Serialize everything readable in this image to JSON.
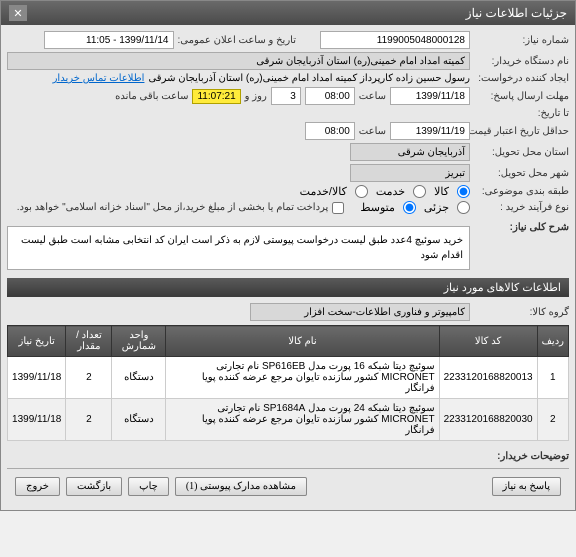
{
  "window": {
    "title": "جزئیات اطلاعات نیاز"
  },
  "header": {
    "need_no_label": "شماره نیاز:",
    "need_no": "1199005048000128",
    "announce_label": "تاریخ و ساعت اعلان عمومی:",
    "announce_val": "1399/11/14 - 11:05",
    "buyer_label": "نام دستگاه خریدار:",
    "buyer_val": "کمیته امداد امام خمینی(ره) استان آذربایجان شرقی",
    "creator_label": "ایجاد کننده درخواست:",
    "creator_val": "رسول  حسین زاده  کارپرداز کمیته امداد امام خمینی(ره) استان آذربایجان شرقی",
    "contact_link": "اطلاعات تماس خریدار",
    "deadline_label": "مهلت ارسال پاسخ:",
    "deadline_date": "1399/11/18",
    "time_label": "ساعت",
    "deadline_time": "08:00",
    "day_count": "3",
    "day_label": "روز و",
    "timer": "11:07:21",
    "remain_label": "ساعت باقی مانده",
    "until_label": "تا تاریخ:",
    "credit_label": "حداقل تاریخ اعتبار قیمت:",
    "credit_date": "1399/11/19",
    "credit_time": "08:00",
    "delivery_label": "استان محل تحویل:",
    "delivery_val": "آذربایجان شرقی",
    "city_label": "شهر محل تحویل:",
    "city_val": "تبریز",
    "group_label": "طبقه بندی موضوعی:",
    "goods": "کالا",
    "service": "خدمت",
    "goods_service": "کالا/خدمت",
    "process_label": "نوع فرآیند خرید :",
    "small": "جزئی",
    "medium": "متوسط",
    "payment_note": "پرداخت تمام یا بخشی از مبلغ خرید،از محل \"اسناد خزانه اسلامی\" خواهد بود."
  },
  "summary": {
    "label": "شرح کلی نیاز:",
    "text": "خرید سوئیچ 4عدد طبق لیست درخواست پیوستی لازم به ذکر است ایران کد انتخابی مشابه است طبق لیست اقدام شود"
  },
  "items_section": {
    "title": "اطلاعات کالاهای مورد نیاز"
  },
  "group": {
    "label": "گروه کالا:",
    "val": "کامپیوتر و فناوری اطلاعات-سخت افزار"
  },
  "table": {
    "cols": [
      "ردیف",
      "کد کالا",
      "نام کالا",
      "واحد شمارش",
      "تعداد / مقدار",
      "تاریخ نیاز"
    ],
    "rows": [
      [
        "1",
        "2233120168820013",
        "سوئیچ دیتا شبکه 16 پورت مدل SP616EB نام تجارتی MICRONET کشور سازنده تایوان مرجع عرضه کننده پویا فرانگار",
        "دستگاه",
        "2",
        "1399/11/18"
      ],
      [
        "2",
        "2233120168820030",
        "سوئیچ دیتا شبکه 24 پورت مدل SP1684A نام تجارتی MICRONET کشور سازنده تایوان مرجع عرضه کننده پویا فرانگار",
        "دستگاه",
        "2",
        "1399/11/18"
      ]
    ]
  },
  "buyer_notes_label": "توضیحات خریدار:",
  "footer": {
    "reply": "پاسخ به نیاز",
    "attach": "مشاهده مدارک پیوستی (1)",
    "print": "چاپ",
    "back": "بازگشت",
    "exit": "خروج"
  }
}
